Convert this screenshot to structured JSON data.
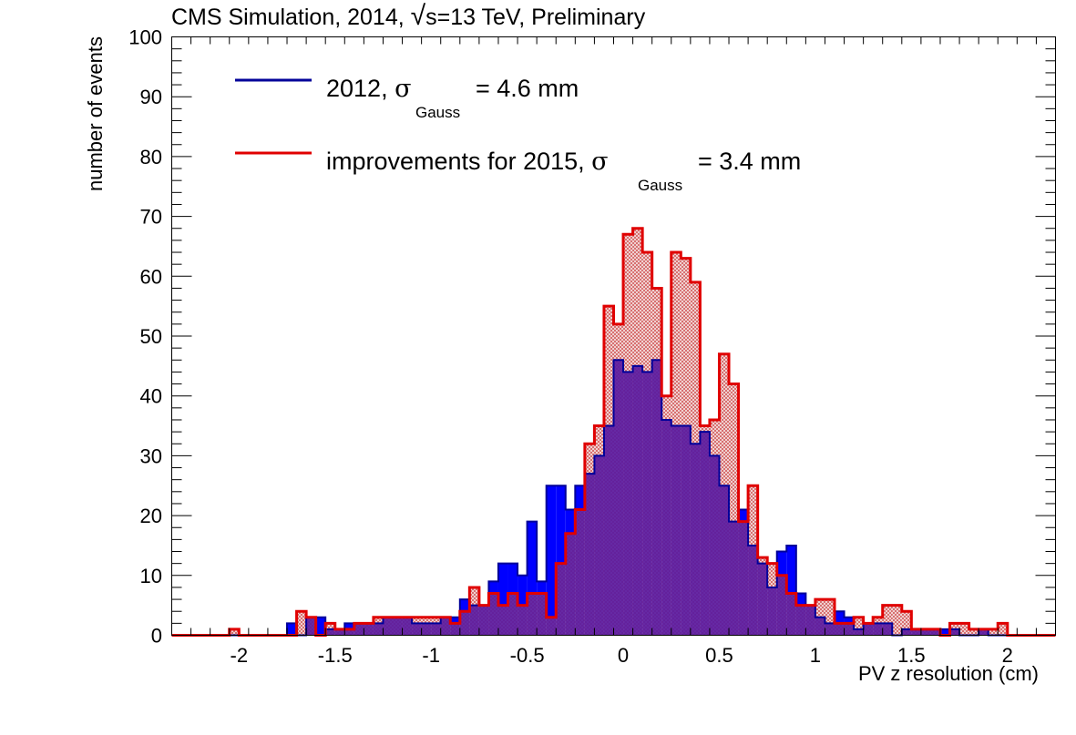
{
  "chart_data": {
    "type": "histogram",
    "title": "CMS Simulation, 2014, ",
    "title_sqrt_symbol": "√",
    "title_sqrt_arg": "s=13 TeV, Preliminary",
    "xlabel": "PV z resolution (cm)",
    "ylabel": "number of events",
    "xlim": [
      -2.35,
      2.25
    ],
    "ylim": [
      0,
      100
    ],
    "x_ticks": [
      {
        "v": -2,
        "label": "-2"
      },
      {
        "v": -1.5,
        "label": "-1.5"
      },
      {
        "v": -1,
        "label": "-1"
      },
      {
        "v": -0.5,
        "label": "-0.5"
      },
      {
        "v": 0,
        "label": "0"
      },
      {
        "v": 0.5,
        "label": "0.5"
      },
      {
        "v": 1,
        "label": "1"
      },
      {
        "v": 1.5,
        "label": "1.5"
      },
      {
        "v": 2,
        "label": "2"
      }
    ],
    "y_ticks": [
      {
        "v": 0,
        "label": "0"
      },
      {
        "v": 10,
        "label": "10"
      },
      {
        "v": 20,
        "label": "20"
      },
      {
        "v": 30,
        "label": "30"
      },
      {
        "v": 40,
        "label": "40"
      },
      {
        "v": 50,
        "label": "50"
      },
      {
        "v": 60,
        "label": "60"
      },
      {
        "v": 70,
        "label": "70"
      },
      {
        "v": 80,
        "label": "80"
      },
      {
        "v": 90,
        "label": "90"
      },
      {
        "v": 100,
        "label": "100"
      }
    ],
    "bin_start": -2.35,
    "bin_width": 0.05,
    "legend_position": "top-left",
    "series": [
      {
        "name": "2012",
        "legend": {
          "prefix": "2012, ",
          "symbol": "σ",
          "subscript": "Gauss",
          "suffix": "= 4.6 mm"
        },
        "color": "#0000ff",
        "line_color": "#00009a",
        "style": "filled",
        "values": [
          0,
          0,
          0,
          0,
          0,
          0,
          0,
          0,
          0,
          0,
          0,
          0,
          2,
          0,
          3,
          3,
          1,
          1,
          2,
          2,
          2,
          2,
          3,
          3,
          3,
          2,
          2,
          2,
          3,
          3,
          6,
          5,
          5,
          9,
          12,
          12,
          10,
          19,
          9,
          25,
          25,
          21,
          25,
          27,
          30,
          35,
          46,
          44,
          45,
          44,
          46,
          36,
          35,
          35,
          32,
          34,
          30,
          25,
          19,
          21,
          15,
          12,
          8,
          14,
          15,
          7,
          5,
          3,
          2,
          4,
          3,
          1,
          2,
          2,
          2,
          0,
          1,
          1,
          1,
          1,
          1,
          1,
          0,
          0,
          1,
          0,
          0,
          0,
          0,
          0,
          0,
          0
        ]
      },
      {
        "name": "improvements for 2015",
        "legend": {
          "prefix": "improvements for 2015, ",
          "symbol": "σ",
          "subscript": "Gauss",
          "suffix": "= 3.4 mm"
        },
        "color": "#e8a8a8",
        "line_color": "#e00000",
        "style": "hatched",
        "values": [
          0,
          0,
          0,
          0,
          0,
          0,
          1,
          0,
          0,
          0,
          0,
          0,
          0,
          4,
          3,
          0,
          2,
          1,
          1,
          2,
          2,
          3,
          3,
          3,
          3,
          3,
          3,
          3,
          3,
          2,
          4,
          8,
          5,
          7,
          5,
          7,
          5,
          7,
          7,
          3,
          12,
          17,
          21,
          32,
          35,
          55,
          52,
          67,
          68,
          64,
          58,
          40,
          64,
          63,
          59,
          35,
          36,
          47,
          42,
          19,
          25,
          13,
          12,
          10,
          7,
          5,
          5,
          6,
          6,
          2,
          2,
          3,
          2,
          3,
          5,
          5,
          4,
          1,
          1,
          1,
          0,
          2,
          2,
          1,
          1,
          1,
          2,
          0,
          0,
          0,
          0,
          0
        ]
      }
    ]
  }
}
